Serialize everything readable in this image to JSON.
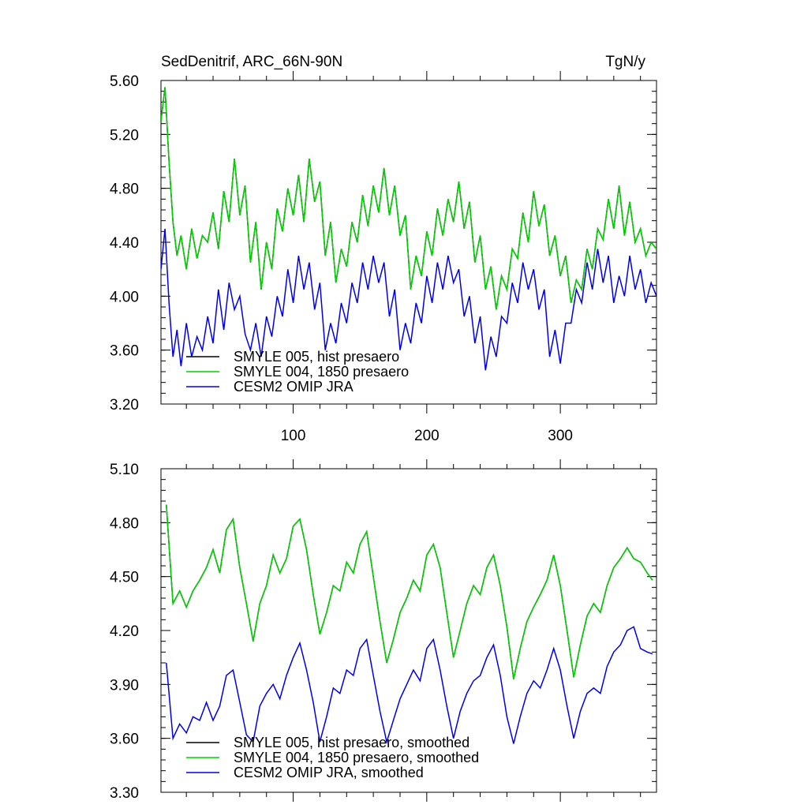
{
  "chart_data": [
    {
      "type": "line",
      "title": "SedDenitrif, ARC_66N-90N",
      "units": "TgN/y",
      "xlabel": "",
      "ylabel": "",
      "xlim": [
        1,
        372
      ],
      "ylim": [
        3.2,
        5.6
      ],
      "x_ticks": [
        100,
        200,
        300
      ],
      "x_tick_labels": [
        "100",
        "200",
        "300"
      ],
      "y_ticks": [
        3.2,
        3.6,
        4.0,
        4.4,
        4.8,
        5.2,
        5.6
      ],
      "y_tick_labels": [
        "3.20",
        "3.60",
        "4.00",
        "4.40",
        "4.80",
        "5.20",
        "5.60"
      ],
      "legend_position": "bottom-left",
      "series": [
        {
          "name": "SMYLE 005, hist presaero",
          "color": "#000000",
          "x": [
            1,
            4,
            7,
            10,
            13,
            16,
            20,
            24,
            28,
            32,
            36,
            40,
            44,
            48,
            52,
            56,
            60,
            64,
            68,
            72,
            76,
            80,
            84,
            88,
            92,
            96,
            100,
            104,
            108,
            112,
            116,
            120,
            124,
            128,
            132,
            136,
            140,
            144,
            148,
            152,
            156,
            160,
            164,
            168,
            172,
            176,
            180,
            184,
            188,
            192,
            196,
            200,
            204,
            208,
            212,
            216,
            220,
            224,
            228,
            232,
            236,
            240,
            244,
            248,
            252,
            256,
            260,
            264,
            268,
            272,
            276,
            280,
            284,
            288,
            292,
            296,
            300,
            304,
            308,
            312,
            316,
            320,
            324,
            328,
            332,
            336,
            340,
            344,
            348,
            352,
            356,
            360,
            364,
            368,
            372
          ],
          "values": [
            5.3,
            5.55,
            5.0,
            4.55,
            4.3,
            4.45,
            4.2,
            4.5,
            4.28,
            4.45,
            4.4,
            4.62,
            4.35,
            4.78,
            4.55,
            5.02,
            4.6,
            4.82,
            4.25,
            4.55,
            4.05,
            4.4,
            4.2,
            4.65,
            4.48,
            4.8,
            4.6,
            4.9,
            4.55,
            5.02,
            4.7,
            4.85,
            4.3,
            4.55,
            4.1,
            4.35,
            4.22,
            4.55,
            4.4,
            4.75,
            4.52,
            4.82,
            4.62,
            4.95,
            4.6,
            4.82,
            4.45,
            4.6,
            4.05,
            4.3,
            4.15,
            4.48,
            4.3,
            4.65,
            4.45,
            4.72,
            4.55,
            4.85,
            4.5,
            4.7,
            4.25,
            4.45,
            4.05,
            4.22,
            3.9,
            4.15,
            4.05,
            4.35,
            4.28,
            4.62,
            4.4,
            4.78,
            4.52,
            4.68,
            4.3,
            4.45,
            4.15,
            4.3,
            3.95,
            4.12,
            4.05,
            4.35,
            4.2,
            4.5,
            4.42,
            4.72,
            4.5,
            4.82,
            4.45,
            4.7,
            4.4,
            4.5,
            4.3,
            4.4,
            4.35
          ]
        },
        {
          "name": "SMYLE 004, 1850 presaero",
          "color": "#00d200",
          "x": [
            1,
            4,
            7,
            10,
            13,
            16,
            20,
            24,
            28,
            32,
            36,
            40,
            44,
            48,
            52,
            56,
            60,
            64,
            68,
            72,
            76,
            80,
            84,
            88,
            92,
            96,
            100,
            104,
            108,
            112,
            116,
            120,
            124,
            128,
            132,
            136,
            140,
            144,
            148,
            152,
            156,
            160,
            164,
            168,
            172,
            176,
            180,
            184,
            188,
            192,
            196,
            200,
            204,
            208,
            212,
            216,
            220,
            224,
            228,
            232,
            236,
            240,
            244,
            248,
            252,
            256,
            260,
            264,
            268,
            272,
            276,
            280,
            284,
            288,
            292,
            296,
            300,
            304,
            308,
            312,
            316,
            320,
            324,
            328,
            332,
            336,
            340,
            344,
            348,
            352,
            356,
            360,
            364,
            368,
            372
          ],
          "values": [
            5.3,
            5.55,
            5.0,
            4.55,
            4.3,
            4.45,
            4.2,
            4.5,
            4.28,
            4.45,
            4.4,
            4.62,
            4.35,
            4.78,
            4.55,
            5.02,
            4.6,
            4.82,
            4.25,
            4.55,
            4.05,
            4.4,
            4.2,
            4.65,
            4.48,
            4.8,
            4.6,
            4.9,
            4.55,
            5.02,
            4.7,
            4.85,
            4.3,
            4.55,
            4.1,
            4.35,
            4.22,
            4.55,
            4.4,
            4.75,
            4.52,
            4.82,
            4.62,
            4.95,
            4.6,
            4.82,
            4.45,
            4.6,
            4.05,
            4.3,
            4.15,
            4.48,
            4.3,
            4.65,
            4.45,
            4.72,
            4.55,
            4.85,
            4.5,
            4.7,
            4.25,
            4.45,
            4.05,
            4.22,
            3.9,
            4.15,
            4.05,
            4.35,
            4.28,
            4.62,
            4.4,
            4.78,
            4.52,
            4.68,
            4.3,
            4.45,
            4.15,
            4.3,
            3.95,
            4.12,
            4.05,
            4.35,
            4.2,
            4.5,
            4.42,
            4.72,
            4.5,
            4.82,
            4.45,
            4.7,
            4.4,
            4.5,
            4.3,
            4.4,
            4.35
          ]
        },
        {
          "name": "CESM2 OMIP JRA",
          "color": "#0000e6",
          "x": [
            1,
            4,
            7,
            10,
            13,
            16,
            20,
            24,
            28,
            32,
            36,
            40,
            44,
            48,
            52,
            56,
            60,
            64,
            68,
            72,
            76,
            80,
            84,
            88,
            92,
            96,
            100,
            104,
            108,
            112,
            116,
            120,
            124,
            128,
            132,
            136,
            140,
            144,
            148,
            152,
            156,
            160,
            164,
            168,
            172,
            176,
            180,
            184,
            188,
            192,
            196,
            200,
            204,
            208,
            212,
            216,
            220,
            224,
            228,
            232,
            236,
            240,
            244,
            248,
            252,
            256,
            260,
            264,
            268,
            272,
            276,
            280,
            284,
            288,
            292,
            296,
            300,
            304,
            308,
            312,
            316,
            320,
            324,
            328,
            332,
            336,
            340,
            344,
            348,
            352,
            356,
            360,
            364,
            368,
            372
          ],
          "values": [
            4.2,
            4.5,
            3.95,
            3.55,
            3.75,
            3.48,
            3.8,
            3.55,
            3.7,
            3.6,
            3.85,
            3.65,
            4.05,
            3.75,
            4.1,
            3.9,
            4.0,
            3.72,
            3.6,
            3.8,
            3.55,
            3.85,
            3.7,
            4.0,
            3.85,
            4.2,
            3.95,
            4.3,
            4.05,
            4.25,
            3.9,
            4.1,
            3.6,
            3.8,
            3.65,
            3.95,
            3.8,
            4.1,
            3.95,
            4.25,
            4.05,
            4.3,
            4.1,
            4.25,
            3.85,
            4.05,
            3.6,
            3.8,
            3.65,
            3.95,
            3.8,
            4.15,
            3.95,
            4.25,
            4.05,
            4.3,
            4.1,
            4.2,
            3.85,
            4.0,
            3.65,
            3.85,
            3.45,
            3.7,
            3.55,
            3.85,
            3.8,
            4.1,
            3.95,
            4.25,
            4.05,
            4.2,
            3.9,
            4.05,
            3.55,
            3.75,
            3.5,
            3.8,
            3.8,
            4.05,
            3.95,
            4.25,
            4.05,
            4.35,
            4.1,
            4.3,
            3.95,
            4.15,
            4.0,
            4.3,
            4.05,
            4.2,
            3.95,
            4.1,
            4.0
          ]
        }
      ]
    },
    {
      "type": "line",
      "title": "",
      "xlabel": "",
      "ylabel": "",
      "xlim": [
        1,
        372
      ],
      "ylim": [
        3.3,
        5.1
      ],
      "x_ticks": [
        100,
        200,
        300
      ],
      "y_ticks": [
        3.3,
        3.6,
        3.9,
        4.2,
        4.5,
        4.8,
        5.1
      ],
      "y_tick_labels": [
        "3.30",
        "3.60",
        "3.90",
        "4.20",
        "4.50",
        "4.80",
        "5.10"
      ],
      "legend_position": "bottom-left",
      "series": [
        {
          "name": "SMYLE 005, hist presaero, smoothed",
          "color": "#000000",
          "x": [
            5,
            10,
            15,
            20,
            25,
            30,
            35,
            40,
            45,
            50,
            55,
            60,
            65,
            70,
            75,
            80,
            85,
            90,
            95,
            100,
            105,
            110,
            115,
            120,
            125,
            130,
            135,
            140,
            145,
            150,
            155,
            160,
            165,
            170,
            175,
            180,
            185,
            190,
            195,
            200,
            205,
            210,
            215,
            220,
            225,
            230,
            235,
            240,
            245,
            250,
            255,
            260,
            265,
            270,
            275,
            280,
            285,
            290,
            295,
            300,
            305,
            310,
            315,
            320,
            325,
            330,
            335,
            340,
            345,
            350,
            355,
            360,
            365,
            369
          ],
          "values": [
            4.9,
            4.35,
            4.42,
            4.33,
            4.42,
            4.48,
            4.55,
            4.65,
            4.52,
            4.76,
            4.82,
            4.55,
            4.35,
            4.14,
            4.35,
            4.45,
            4.62,
            4.52,
            4.6,
            4.78,
            4.82,
            4.65,
            4.4,
            4.18,
            4.3,
            4.45,
            4.42,
            4.58,
            4.52,
            4.68,
            4.75,
            4.5,
            4.25,
            4.02,
            4.15,
            4.3,
            4.38,
            4.48,
            4.42,
            4.62,
            4.68,
            4.55,
            4.3,
            4.05,
            4.2,
            4.35,
            4.45,
            4.4,
            4.55,
            4.62,
            4.45,
            4.22,
            3.93,
            4.1,
            4.25,
            4.33,
            4.4,
            4.48,
            4.62,
            4.45,
            4.2,
            3.94,
            4.12,
            4.28,
            4.35,
            4.3,
            4.45,
            4.55,
            4.6,
            4.66,
            4.6,
            4.58,
            4.52,
            4.48
          ]
        },
        {
          "name": "SMYLE 004, 1850 presaero, smoothed",
          "color": "#00d200",
          "x": [
            5,
            10,
            15,
            20,
            25,
            30,
            35,
            40,
            45,
            50,
            55,
            60,
            65,
            70,
            75,
            80,
            85,
            90,
            95,
            100,
            105,
            110,
            115,
            120,
            125,
            130,
            135,
            140,
            145,
            150,
            155,
            160,
            165,
            170,
            175,
            180,
            185,
            190,
            195,
            200,
            205,
            210,
            215,
            220,
            225,
            230,
            235,
            240,
            245,
            250,
            255,
            260,
            265,
            270,
            275,
            280,
            285,
            290,
            295,
            300,
            305,
            310,
            315,
            320,
            325,
            330,
            335,
            340,
            345,
            350,
            355,
            360,
            365,
            369
          ],
          "values": [
            4.9,
            4.35,
            4.42,
            4.33,
            4.42,
            4.48,
            4.55,
            4.65,
            4.52,
            4.76,
            4.82,
            4.55,
            4.35,
            4.14,
            4.35,
            4.45,
            4.62,
            4.52,
            4.6,
            4.78,
            4.82,
            4.65,
            4.4,
            4.18,
            4.3,
            4.45,
            4.42,
            4.58,
            4.52,
            4.68,
            4.75,
            4.5,
            4.25,
            4.02,
            4.15,
            4.3,
            4.38,
            4.48,
            4.42,
            4.62,
            4.68,
            4.55,
            4.3,
            4.05,
            4.2,
            4.35,
            4.45,
            4.4,
            4.55,
            4.62,
            4.45,
            4.22,
            3.93,
            4.1,
            4.25,
            4.33,
            4.4,
            4.48,
            4.62,
            4.45,
            4.2,
            3.94,
            4.12,
            4.28,
            4.35,
            4.3,
            4.45,
            4.55,
            4.6,
            4.66,
            4.6,
            4.58,
            4.52,
            4.48
          ]
        },
        {
          "name": "CESM2 OMIP JRA, smoothed",
          "color": "#0000e6",
          "x": [
            5,
            10,
            15,
            20,
            25,
            30,
            35,
            40,
            45,
            50,
            55,
            60,
            65,
            70,
            75,
            80,
            85,
            90,
            95,
            100,
            105,
            110,
            115,
            120,
            125,
            130,
            135,
            140,
            145,
            150,
            155,
            160,
            165,
            170,
            175,
            180,
            185,
            190,
            195,
            200,
            205,
            210,
            215,
            220,
            225,
            230,
            235,
            240,
            245,
            250,
            255,
            260,
            265,
            270,
            275,
            280,
            285,
            290,
            295,
            300,
            305,
            310,
            315,
            320,
            325,
            330,
            335,
            340,
            345,
            350,
            355,
            360,
            365,
            369
          ],
          "values": [
            4.02,
            3.6,
            3.68,
            3.63,
            3.72,
            3.7,
            3.8,
            3.7,
            3.78,
            3.95,
            3.98,
            3.8,
            3.62,
            3.58,
            3.78,
            3.85,
            3.9,
            3.82,
            3.95,
            4.05,
            4.13,
            3.98,
            3.8,
            3.58,
            3.72,
            3.88,
            3.85,
            3.98,
            3.95,
            4.1,
            4.15,
            3.95,
            3.75,
            3.58,
            3.7,
            3.82,
            3.9,
            3.98,
            3.92,
            4.1,
            4.15,
            3.98,
            3.78,
            3.6,
            3.75,
            3.85,
            3.92,
            3.95,
            4.05,
            4.12,
            3.95,
            3.72,
            3.57,
            3.72,
            3.85,
            3.92,
            3.88,
            3.98,
            4.1,
            3.98,
            3.78,
            3.6,
            3.75,
            3.85,
            3.88,
            3.85,
            4.0,
            4.08,
            4.12,
            4.2,
            4.22,
            4.1,
            4.08,
            4.07
          ]
        }
      ]
    }
  ]
}
